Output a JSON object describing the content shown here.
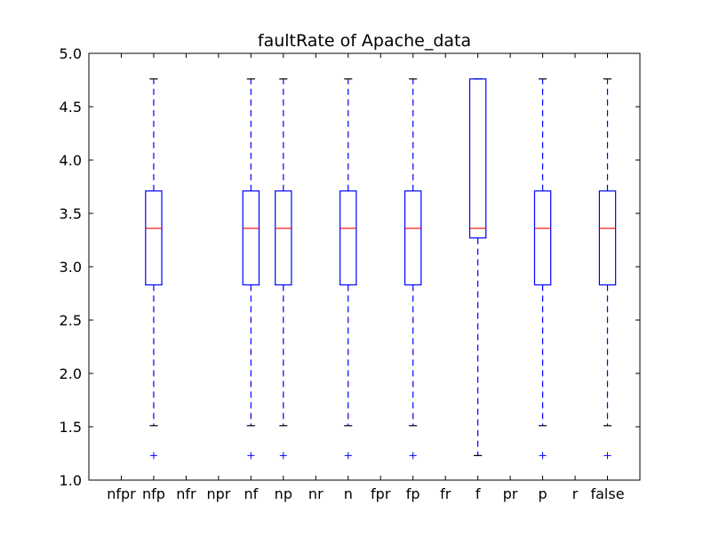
{
  "chart_data": {
    "type": "boxplot",
    "title": "faultRate of Apache_data",
    "xlabel": "",
    "ylabel": "",
    "ylim": [
      1.0,
      5.0
    ],
    "yticks": [
      "1.0",
      "1.5",
      "2.0",
      "2.5",
      "3.0",
      "3.5",
      "4.0",
      "4.5",
      "5.0"
    ],
    "categories": [
      "nfpr",
      "nfp",
      "nfr",
      "npr",
      "nf",
      "np",
      "nr",
      "n",
      "fpr",
      "fp",
      "fr",
      "f",
      "pr",
      "p",
      "r",
      "false"
    ],
    "boxes": [
      {
        "category": "nfpr",
        "stats": null
      },
      {
        "category": "nfp",
        "stats": {
          "whisker_low": 1.51,
          "q1": 2.83,
          "median": 3.36,
          "q3": 3.71,
          "whisker_high": 4.76,
          "outliers": [
            1.23
          ]
        }
      },
      {
        "category": "nfr",
        "stats": null
      },
      {
        "category": "npr",
        "stats": null
      },
      {
        "category": "nf",
        "stats": {
          "whisker_low": 1.51,
          "q1": 2.83,
          "median": 3.36,
          "q3": 3.71,
          "whisker_high": 4.76,
          "outliers": [
            1.23
          ]
        }
      },
      {
        "category": "np",
        "stats": {
          "whisker_low": 1.51,
          "q1": 2.83,
          "median": 3.36,
          "q3": 3.71,
          "whisker_high": 4.76,
          "outliers": [
            1.23
          ]
        }
      },
      {
        "category": "nr",
        "stats": null
      },
      {
        "category": "n",
        "stats": {
          "whisker_low": 1.51,
          "q1": 2.83,
          "median": 3.36,
          "q3": 3.71,
          "whisker_high": 4.76,
          "outliers": [
            1.23
          ]
        }
      },
      {
        "category": "fpr",
        "stats": null
      },
      {
        "category": "fp",
        "stats": {
          "whisker_low": 1.51,
          "q1": 2.83,
          "median": 3.36,
          "q3": 3.71,
          "whisker_high": 4.76,
          "outliers": [
            1.23
          ]
        }
      },
      {
        "category": "fr",
        "stats": null
      },
      {
        "category": "f",
        "stats": {
          "whisker_low": 1.23,
          "q1": 3.27,
          "median": 3.36,
          "q3": 4.76,
          "whisker_high": 4.76,
          "outliers": []
        }
      },
      {
        "category": "pr",
        "stats": null
      },
      {
        "category": "p",
        "stats": {
          "whisker_low": 1.51,
          "q1": 2.83,
          "median": 3.36,
          "q3": 3.71,
          "whisker_high": 4.76,
          "outliers": [
            1.23
          ]
        }
      },
      {
        "category": "r",
        "stats": null
      },
      {
        "category": "false",
        "stats": {
          "whisker_low": 1.51,
          "q1": 2.83,
          "median": 3.36,
          "q3": 3.71,
          "whisker_high": 4.76,
          "outliers": [
            1.23
          ]
        }
      }
    ],
    "grid": false,
    "legend": "none",
    "colors": {
      "box": "#0000ff",
      "median": "#ff0000",
      "whisker": "#0000ff",
      "cap": "#000000",
      "outlier": "#0000ff"
    }
  }
}
